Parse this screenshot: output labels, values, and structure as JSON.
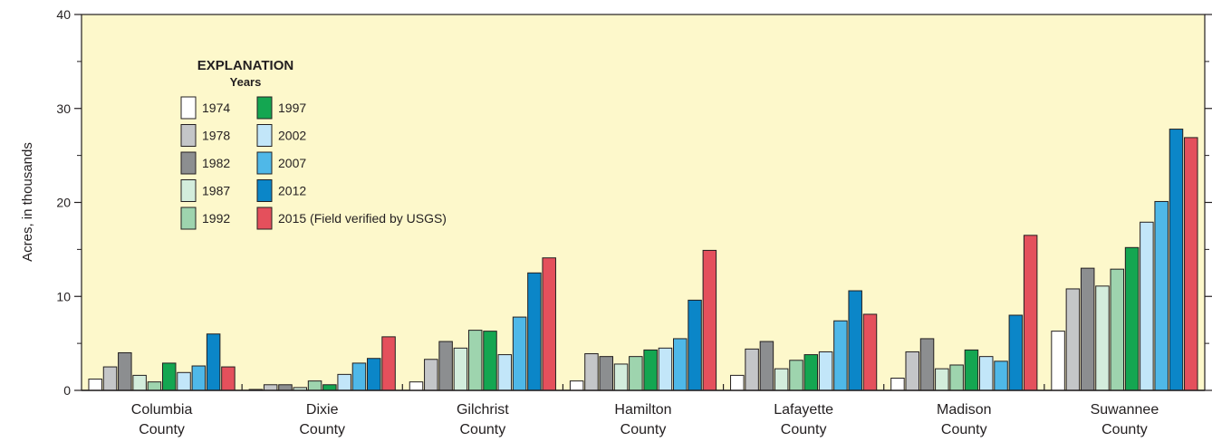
{
  "chart_data": {
    "type": "bar",
    "ylabel": "Acres, in thousands",
    "ylim": [
      0,
      40
    ],
    "yticks": [
      "0",
      "10",
      "20",
      "30",
      "40"
    ],
    "grid": false,
    "legend_position": "top-left",
    "legend_title": "EXPLANATION",
    "legend_subtitle": "Years",
    "categories": [
      [
        "Columbia",
        "County"
      ],
      [
        "Dixie",
        "County"
      ],
      [
        "Gilchrist",
        "County"
      ],
      [
        "Hamilton",
        "County"
      ],
      [
        "Lafayette",
        "County"
      ],
      [
        "Madison",
        "County"
      ],
      [
        "Suwannee",
        "County"
      ]
    ],
    "series": [
      {
        "name": "1974",
        "color": "#ffffff",
        "values": [
          1.2,
          0.1,
          0.9,
          1.0,
          1.6,
          1.3,
          6.3
        ]
      },
      {
        "name": "1978",
        "color": "#c4c6c8",
        "values": [
          2.5,
          0.6,
          3.3,
          3.9,
          4.4,
          4.1,
          10.8
        ]
      },
      {
        "name": "1982",
        "color": "#8c8e90",
        "values": [
          4.0,
          0.6,
          5.2,
          3.6,
          5.2,
          5.5,
          13.0
        ]
      },
      {
        "name": "1987",
        "color": "#d3eddc",
        "values": [
          1.6,
          0.3,
          4.5,
          2.8,
          2.3,
          2.3,
          11.1
        ]
      },
      {
        "name": "1992",
        "color": "#9ed4ae",
        "values": [
          0.9,
          1.0,
          6.4,
          3.6,
          3.2,
          2.7,
          12.9
        ]
      },
      {
        "name": "1997",
        "color": "#14a651",
        "values": [
          2.9,
          0.6,
          6.3,
          4.3,
          3.8,
          4.3,
          15.2
        ]
      },
      {
        "name": "2002",
        "color": "#c2e6f9",
        "values": [
          1.9,
          1.7,
          3.8,
          4.5,
          4.1,
          3.6,
          17.9
        ]
      },
      {
        "name": "2007",
        "color": "#4fb8e8",
        "values": [
          2.6,
          2.9,
          7.8,
          5.5,
          7.4,
          3.1,
          20.1
        ]
      },
      {
        "name": "2012",
        "color": "#0b86c8",
        "values": [
          6.0,
          3.4,
          12.5,
          9.6,
          10.6,
          8.0,
          27.8
        ]
      },
      {
        "name": "2015 (Field verified by USGS)",
        "color": "#e4505c",
        "values": [
          2.5,
          5.7,
          14.1,
          14.9,
          8.1,
          16.5,
          26.9
        ]
      }
    ]
  },
  "colors": {
    "plot_background": "#fdf8cb",
    "axis": "#231f20"
  }
}
